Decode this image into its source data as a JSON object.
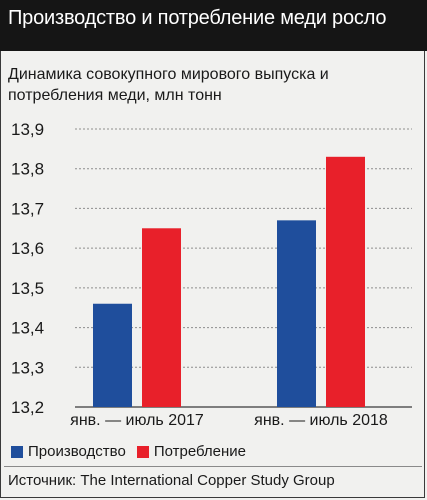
{
  "header": {
    "title": "Производство и потребление меди росло"
  },
  "chart_data": {
    "type": "bar",
    "title": "Динамика совокупного мирового выпуска и потребления меди, млн тонн",
    "categories": [
      "янв. — июль 2017",
      "янв. — июль 2018"
    ],
    "series": [
      {
        "name": "Производство",
        "values": [
          13.46,
          13.67
        ],
        "color": "#1f4e9c"
      },
      {
        "name": "Потребление",
        "values": [
          13.65,
          13.83
        ],
        "color": "#e8202a"
      }
    ],
    "ylim": [
      13.2,
      13.9
    ],
    "yticks": [
      "13,9",
      "13,8",
      "13,7",
      "13,6",
      "13,5",
      "13,4",
      "13,3",
      "13,2"
    ],
    "grid": true,
    "legend_position": "bottom-left"
  },
  "source": "Источник: The International Copper Study Group"
}
